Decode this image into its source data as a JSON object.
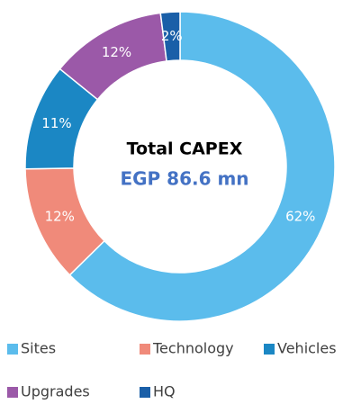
{
  "chart_data": {
    "type": "pie",
    "center_title": "Total CAPEX",
    "center_value": "EGP 86.6 mn",
    "categories": [
      "Sites",
      "Technology",
      "Vehicles",
      "Upgrades",
      "HQ"
    ],
    "values": [
      62,
      12,
      11,
      12,
      2
    ],
    "value_labels": [
      "62%",
      "12%",
      "11%",
      "12%",
      "2%"
    ],
    "colors": [
      "#5bbcec",
      "#f08a7a",
      "#1b87c4",
      "#9b59a8",
      "#1a5fa8"
    ],
    "legend": "bottom"
  }
}
